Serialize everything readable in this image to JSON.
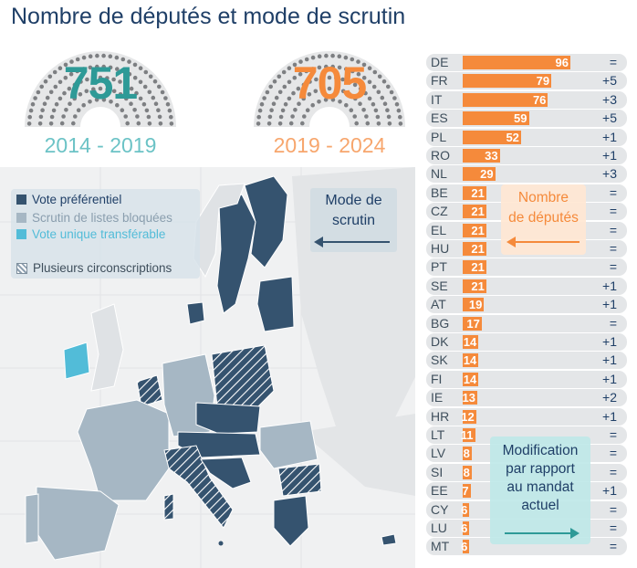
{
  "title": "Nombre de députés et mode de scrutin",
  "parliaments": [
    {
      "seats": "751",
      "term": "2014 - 2019",
      "color": "#2e9a97",
      "term_color": "#6cc3c6"
    },
    {
      "seats": "705",
      "term": "2019 - 2024",
      "color": "#f58a3b",
      "term_color": "#f7a66d"
    }
  ],
  "legend": {
    "items": [
      {
        "label": "Vote préférentiel",
        "color": "#35536f",
        "text_color": "#1f3f67",
        "icon": "swatch"
      },
      {
        "label": "Scrutin de listes bloquées",
        "color": "#a6b7c4",
        "text_color": "#8a9eae",
        "icon": "swatch"
      },
      {
        "label": "Vote unique transférable",
        "color": "#52bcd8",
        "text_color": "#52bcd8",
        "icon": "swatch"
      },
      {
        "label": "Plusieurs circonscriptions",
        "color": "#8fa1b1",
        "text_color": "#3f4f5c",
        "icon": "hatch"
      }
    ]
  },
  "map_legend": {
    "label": "Mode de scrutin",
    "line1": "Mode de",
    "line2": "scrutin"
  },
  "seat_legend": {
    "line1": "Nombre",
    "line2": "de députés"
  },
  "change_legend": {
    "lines": [
      "Modification",
      "par rapport",
      "au mandat",
      "actuel"
    ]
  },
  "colors": {
    "bar": "#f58a3b",
    "preferential": "#35536f",
    "closed_list": "#a6b7c4",
    "stv": "#52bcd8",
    "title": "#1f3f67"
  },
  "chart_data": {
    "type": "bar",
    "title": "Nombre de députés et mode de scrutin",
    "categories": [
      "DE",
      "FR",
      "IT",
      "ES",
      "PL",
      "RO",
      "NL",
      "BE",
      "CZ",
      "EL",
      "HU",
      "PT",
      "SE",
      "AT",
      "BG",
      "DK",
      "SK",
      "FI",
      "IE",
      "HR",
      "LT",
      "LV",
      "SI",
      "EE",
      "CY",
      "LU",
      "MT"
    ],
    "series": [
      {
        "name": "Nombre de députés",
        "values": [
          96,
          79,
          76,
          59,
          52,
          33,
          29,
          21,
          21,
          21,
          21,
          21,
          21,
          19,
          17,
          14,
          14,
          14,
          13,
          12,
          11,
          8,
          8,
          7,
          6,
          6,
          6
        ]
      },
      {
        "name": "Modification par rapport au mandat actuel",
        "values": [
          "=",
          "+5",
          "+3",
          "+5",
          "+1",
          "+1",
          "+3",
          "=",
          "=",
          "=",
          "=",
          "=",
          "+1",
          "+1",
          "=",
          "+1",
          "+1",
          "+1",
          "+2",
          "+1",
          "=",
          "=",
          "=",
          "+1",
          "=",
          "=",
          "="
        ]
      }
    ],
    "xlim": [
      0,
      96
    ]
  }
}
